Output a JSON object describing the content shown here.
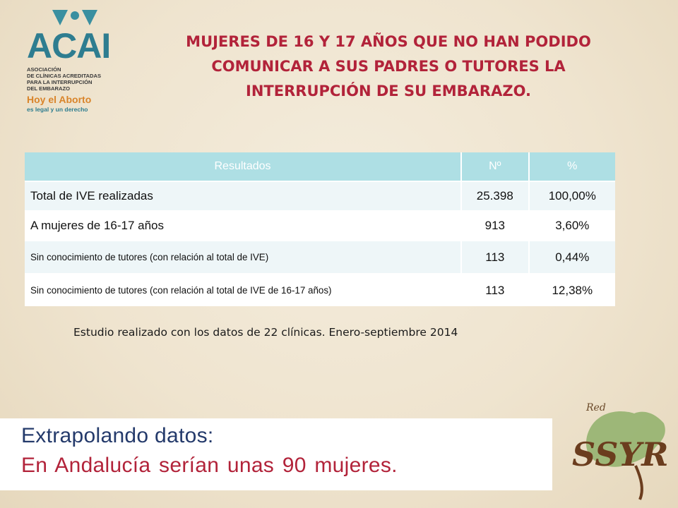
{
  "logo": {
    "name": "ACAI",
    "subtitle_lines": [
      "Asociación",
      "de clínicas acreditadas",
      "para la interrupción",
      "del embarazo"
    ],
    "tagline": "Hoy el Aborto",
    "tagline2": "es legal y un derecho"
  },
  "title_lines": [
    "MUJERES DE 16 Y 17 AÑOS QUE NO HAN PODIDO",
    "COMUNICAR A SUS PADRES O TUTORES LA",
    "INTERRUPCIÓN DE SU EMBARAZO."
  ],
  "table": {
    "headers": [
      "Resultados",
      "Nº",
      "%"
    ],
    "rows": [
      [
        "Total de IVE realizadas",
        "25.398",
        "100,00%"
      ],
      [
        "A mujeres de 16-17 años",
        "913",
        "3,60%"
      ],
      [
        "Sin conocimiento de tutores (con relación al total de IVE)",
        "113",
        "0,44%"
      ],
      [
        "Sin conocimiento de tutores (con relación al total de IVE de 16-17 años)",
        "113",
        "12,38%"
      ]
    ]
  },
  "note": "Estudio realizado con los datos de 22 clínicas. Enero-septiembre 2014",
  "extrapolation": {
    "line1": "Extrapolando datos:",
    "line2": "En Andalucía serían unas 90 mujeres."
  },
  "red_logo": {
    "small": "Red",
    "big": "SSYR"
  },
  "colors": {
    "title": "#b2233a",
    "header_bg": "#aedfe4",
    "acai_teal": "#2e7d90",
    "extrap_blue": "#243a6b",
    "extrap_red": "#b2233a"
  }
}
